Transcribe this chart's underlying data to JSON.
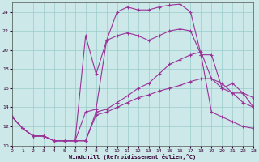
{
  "xlabel": "Windchill (Refroidissement éolien,°C)",
  "bg_color": "#cce8e8",
  "grid_color": "#99cccc",
  "line_color": "#993399",
  "xlim": [
    0,
    23
  ],
  "ylim": [
    10,
    25
  ],
  "yticks": [
    10,
    12,
    14,
    16,
    18,
    20,
    22,
    24
  ],
  "xticks": [
    0,
    1,
    2,
    3,
    4,
    5,
    6,
    7,
    8,
    9,
    10,
    11,
    12,
    13,
    14,
    15,
    16,
    17,
    18,
    19,
    20,
    21,
    22,
    23
  ],
  "curve1_x": [
    0,
    1,
    2,
    3,
    4,
    5,
    6,
    7,
    8,
    9,
    10,
    11,
    12,
    13,
    14,
    15,
    16,
    17,
    18,
    19,
    20,
    21,
    22,
    23
  ],
  "curve1_y": [
    13.0,
    11.8,
    11.0,
    11.0,
    10.5,
    10.5,
    10.5,
    21.5,
    17.5,
    21.0,
    24.0,
    24.5,
    24.2,
    24.2,
    24.5,
    24.7,
    24.8,
    24.0,
    19.5,
    13.5,
    13.0,
    12.5,
    12.0,
    11.8
  ],
  "curve2_x": [
    0,
    1,
    2,
    3,
    4,
    5,
    6,
    7,
    8,
    9,
    10,
    11,
    12,
    13,
    14,
    15,
    16,
    17,
    18,
    19,
    20,
    21,
    22,
    23
  ],
  "curve2_y": [
    13.0,
    11.8,
    11.0,
    11.0,
    10.5,
    10.5,
    10.5,
    13.5,
    13.8,
    21.0,
    21.5,
    21.8,
    21.5,
    21.0,
    21.5,
    22.0,
    22.2,
    22.0,
    19.5,
    19.5,
    16.0,
    15.5,
    15.5,
    15.0
  ],
  "curve3_x": [
    0,
    1,
    2,
    3,
    4,
    5,
    6,
    7,
    8,
    9,
    10,
    11,
    12,
    13,
    14,
    15,
    16,
    17,
    18,
    19,
    20,
    21,
    22,
    23
  ],
  "curve3_y": [
    13.0,
    11.8,
    11.0,
    11.0,
    10.5,
    10.5,
    10.5,
    10.5,
    13.5,
    13.8,
    14.5,
    15.2,
    16.0,
    16.5,
    17.5,
    18.5,
    19.0,
    19.5,
    19.8,
    17.0,
    16.0,
    16.5,
    15.5,
    14.0
  ],
  "curve4_x": [
    0,
    1,
    2,
    3,
    4,
    5,
    6,
    7,
    8,
    9,
    10,
    11,
    12,
    13,
    14,
    15,
    16,
    17,
    18,
    19,
    20,
    21,
    22,
    23
  ],
  "curve4_y": [
    13.0,
    11.8,
    11.0,
    11.0,
    10.5,
    10.5,
    10.5,
    10.5,
    13.2,
    13.5,
    14.0,
    14.5,
    15.0,
    15.3,
    15.7,
    16.0,
    16.3,
    16.7,
    17.0,
    17.0,
    16.5,
    15.5,
    14.5,
    14.0
  ]
}
